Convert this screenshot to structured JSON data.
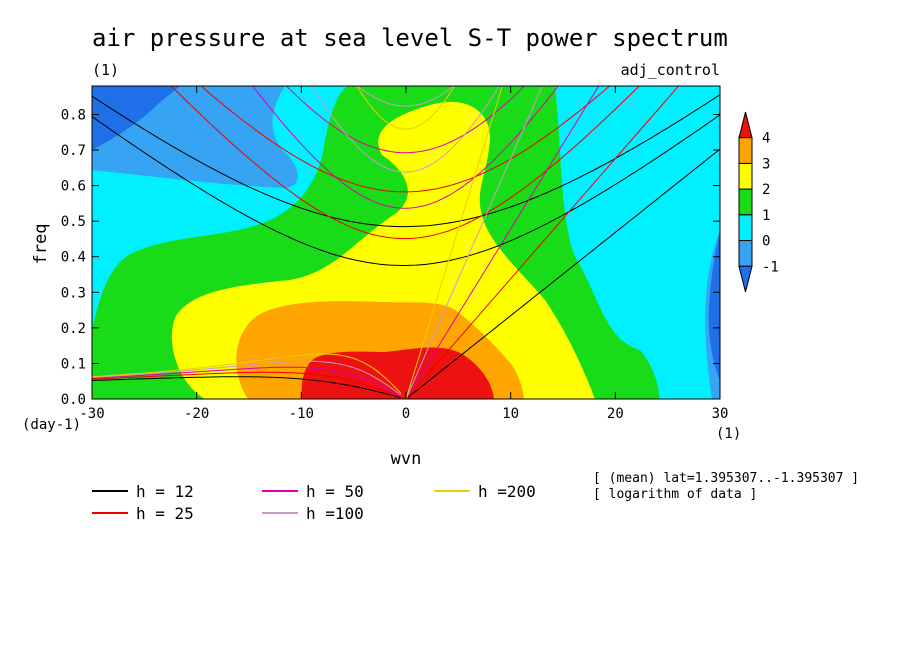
{
  "chart_data": {
    "type": "heatmap",
    "title": "air pressure at sea level S-T power spectrum",
    "subtitle_left": "(1)",
    "subtitle_right": "adj_control",
    "xlabel": "wvn",
    "ylabel": "freq",
    "x_unit": "(1)",
    "y_unit": "(day-1)",
    "xlim": [
      -30,
      30
    ],
    "ylim": [
      0,
      0.88
    ],
    "x_ticks": [
      -30,
      -20,
      -10,
      0,
      10,
      20,
      30
    ],
    "x_tick_labels": [
      "-30",
      "-20",
      "-10",
      "0",
      "10",
      "20",
      "30"
    ],
    "y_ticks": [
      0.0,
      0.1,
      0.2,
      0.3,
      0.4,
      0.5,
      0.6,
      0.7,
      0.8
    ],
    "y_tick_labels": [
      "0.0",
      "0.1",
      "0.2",
      "0.3",
      "0.4",
      "0.5",
      "0.6",
      "0.7",
      "0.8"
    ],
    "colorbar": {
      "levels": [
        -1,
        0,
        1,
        2,
        3,
        4
      ],
      "labels": [
        "-1",
        "0",
        "1",
        "2",
        "3",
        "4"
      ],
      "colors": [
        "#1e6fe8",
        "#36a4f2",
        "#00f0ff",
        "#19dc19",
        "#ffff00",
        "#ffa500",
        "#ee1111"
      ]
    },
    "notes": [
      "[ (mean) lat=1.395307..-1.395307 ]",
      "[ logarithm of data ]"
    ],
    "dispersion_curves": [
      {
        "label": "h = 12",
        "h": 12,
        "color": "#000000"
      },
      {
        "label": "h = 25",
        "h": 25,
        "color": "#ee0000"
      },
      {
        "label": "h = 50",
        "h": 50,
        "color": "#dd00aa"
      },
      {
        "label": "h =100",
        "h": 100,
        "color": "#cc99cc"
      },
      {
        "label": "h =200",
        "h": 200,
        "color": "#eecc00"
      }
    ]
  }
}
